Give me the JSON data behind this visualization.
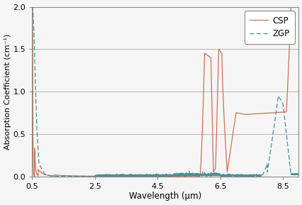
{
  "xlabel": "Wavelength (μm)",
  "ylabel": "Absorption Coefficient (cm⁻¹)",
  "xlim": [
    0.5,
    9.0
  ],
  "ylim": [
    0.0,
    2.0
  ],
  "xticks": [
    0.5,
    2.5,
    4.5,
    6.5,
    8.5
  ],
  "yticks": [
    0.0,
    0.5,
    1.0,
    1.5,
    2.0
  ],
  "csp_color": "#cc7055",
  "zgp_color": "#4a9090",
  "background_color": "#f5f5f5",
  "legend_labels": [
    "CSP",
    "ZGP"
  ],
  "figsize": [
    4.27,
    2.89
  ],
  "dpi": 100
}
